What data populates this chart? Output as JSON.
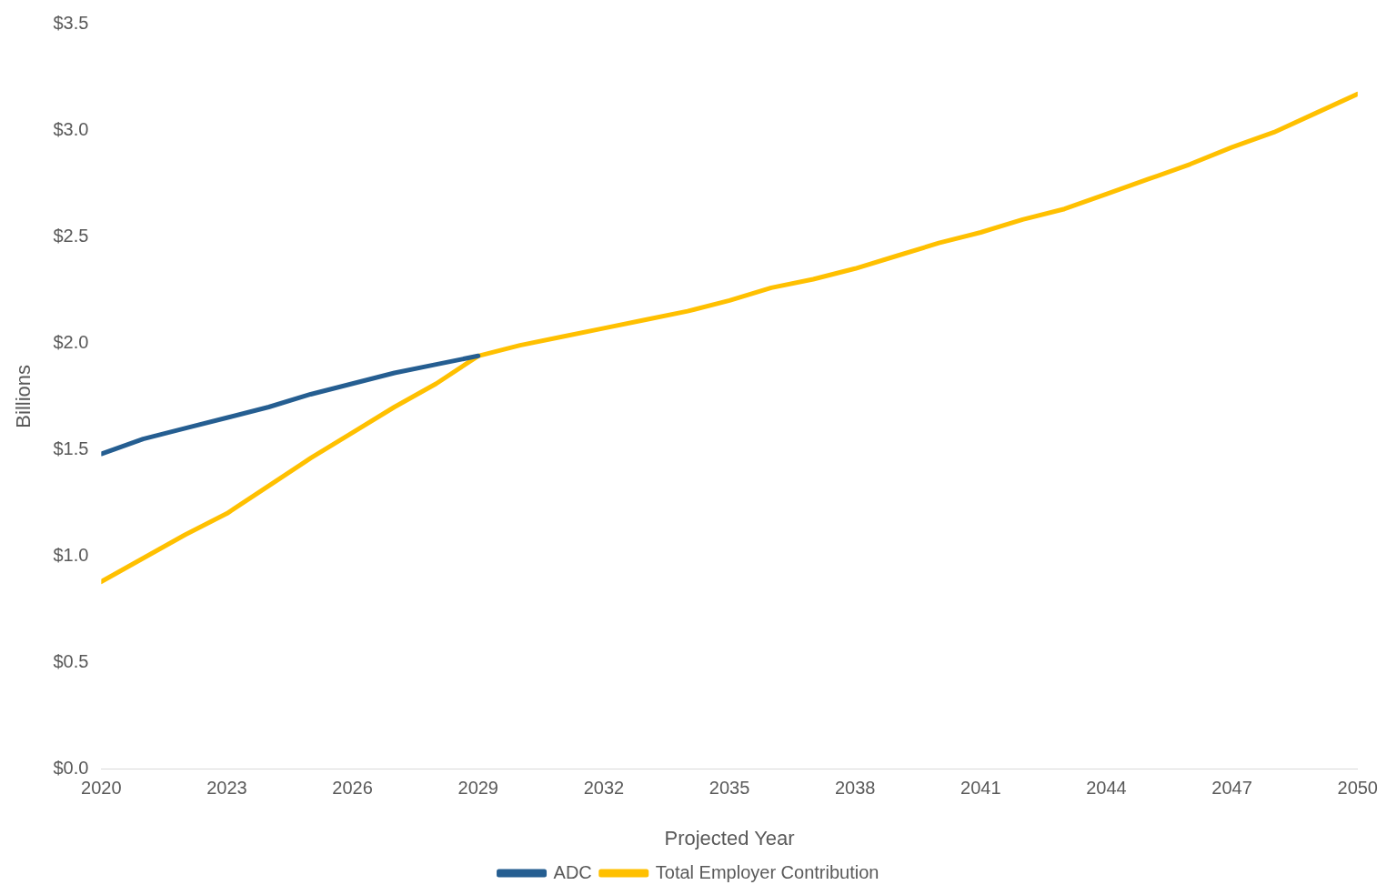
{
  "chart_data": {
    "type": "line",
    "xlabel": "Projected Year",
    "ylabel": "Billions",
    "x": [
      2020,
      2021,
      2022,
      2023,
      2024,
      2025,
      2026,
      2027,
      2028,
      2029,
      2030,
      2031,
      2032,
      2033,
      2034,
      2035,
      2036,
      2037,
      2038,
      2039,
      2040,
      2041,
      2042,
      2043,
      2044,
      2045,
      2046,
      2047,
      2048,
      2049,
      2050
    ],
    "series": [
      {
        "name": "ADC",
        "color": "#255e91",
        "values": [
          1.48,
          1.55,
          1.6,
          1.65,
          1.7,
          1.76,
          1.81,
          1.86,
          1.9,
          1.94,
          null,
          null,
          null,
          null,
          null,
          null,
          null,
          null,
          null,
          null,
          null,
          null,
          null,
          null,
          null,
          null,
          null,
          null,
          null,
          null,
          null
        ]
      },
      {
        "name": "Total Employer Contribution",
        "color": "#ffc000",
        "values": [
          0.88,
          0.99,
          1.1,
          1.2,
          1.33,
          1.46,
          1.58,
          1.7,
          1.81,
          1.94,
          1.99,
          2.03,
          2.07,
          2.11,
          2.15,
          2.2,
          2.26,
          2.3,
          2.35,
          2.41,
          2.47,
          2.52,
          2.58,
          2.63,
          2.7,
          2.77,
          2.84,
          2.92,
          2.99,
          3.08,
          3.17
        ]
      }
    ],
    "xlim": [
      2020,
      2050
    ],
    "xticks": [
      2020,
      2023,
      2026,
      2029,
      2032,
      2035,
      2038,
      2041,
      2044,
      2047,
      2050
    ],
    "ylim": [
      0,
      3.5
    ],
    "yticks": [
      {
        "value": 0,
        "label": "$0.0"
      },
      {
        "value": 0.5,
        "label": "$0.5"
      },
      {
        "value": 1,
        "label": "$1.0"
      },
      {
        "value": 1.5,
        "label": "$1.5"
      },
      {
        "value": 2,
        "label": "$2.0"
      },
      {
        "value": 2.5,
        "label": "$2.5"
      },
      {
        "value": 3,
        "label": "$3.0"
      },
      {
        "value": 3.5,
        "label": "$3.5"
      }
    ],
    "grid": false,
    "legend": "bottom",
    "marker": "none",
    "line_style": "solid"
  }
}
